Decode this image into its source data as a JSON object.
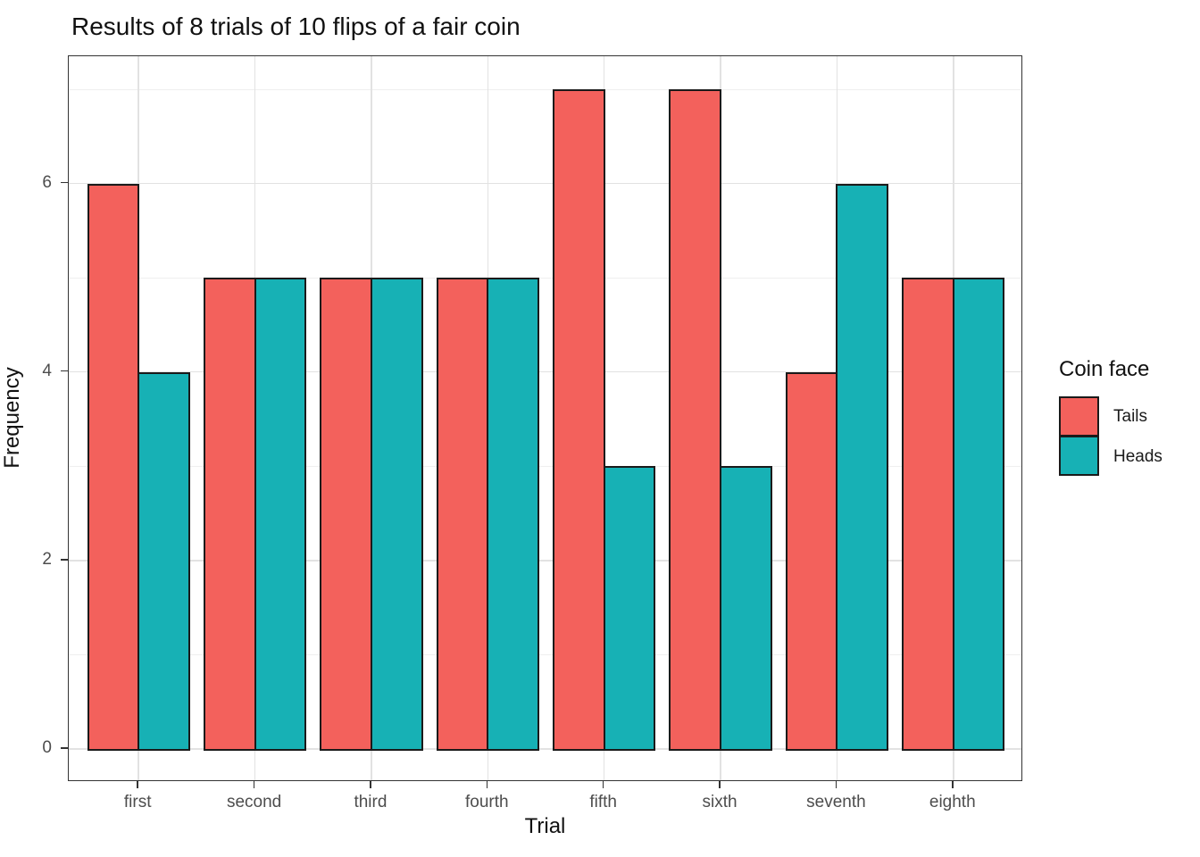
{
  "title": "Results of 8 trials of 10 flips of a fair coin",
  "chart_data": {
    "type": "bar",
    "subtype": "grouped",
    "title": "Results of 8 trials of 10 flips of a fair coin",
    "xlabel": "Trial",
    "ylabel": "Frequency",
    "categories": [
      "first",
      "second",
      "third",
      "fourth",
      "fifth",
      "sixth",
      "seventh",
      "eighth"
    ],
    "series": [
      {
        "name": "Tails",
        "color": "#F3615C",
        "values": [
          6,
          5,
          5,
          5,
          7,
          7,
          4,
          5
        ]
      },
      {
        "name": "Heads",
        "color": "#17B1B5",
        "values": [
          4,
          5,
          5,
          5,
          3,
          3,
          6,
          5
        ]
      }
    ],
    "ylim": [
      0,
      7
    ],
    "y_major_ticks": [
      0,
      2,
      4,
      6
    ],
    "y_minor_gridlines": [
      1,
      3,
      5,
      7
    ],
    "grid": "on",
    "legend_title": "Coin face",
    "legend_position": "right",
    "legend_entries": [
      "Tails",
      "Heads"
    ],
    "bar_border_color": "#1a1a1a",
    "major_grid_color": "#e2e2e2",
    "minor_grid_color": "#efefef",
    "panel_border_color": "#333333",
    "tick_label_color": "#4d4d4d"
  }
}
